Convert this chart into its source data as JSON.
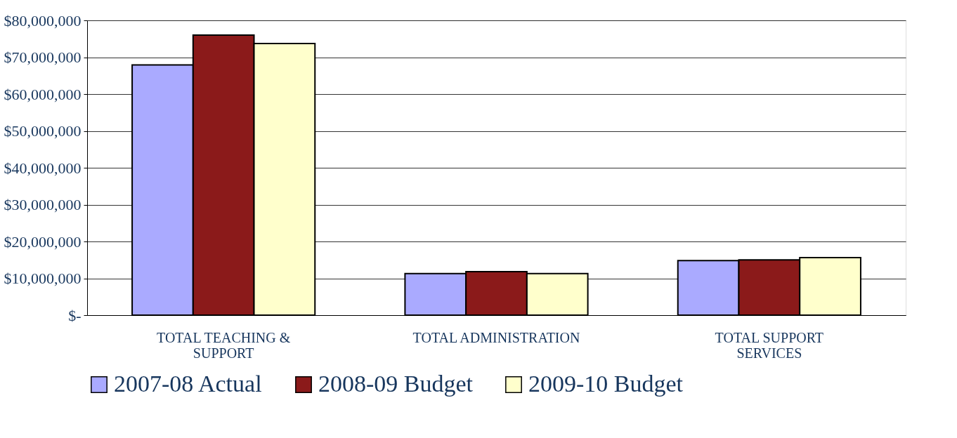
{
  "chart_data": {
    "type": "bar",
    "categories": [
      "TOTAL TEACHING & SUPPORT",
      "TOTAL ADMINISTRATION",
      "TOTAL SUPPORT SERVICES"
    ],
    "series": [
      {
        "name": "2007-08 Actual",
        "color": "#aaaaff",
        "values": [
          67900000,
          11300000,
          14800000
        ]
      },
      {
        "name": "2008-09 Budget",
        "color": "#8b1a1a",
        "values": [
          76000000,
          11800000,
          15000000
        ]
      },
      {
        "name": "2009-10 Budget",
        "color": "#ffffcc",
        "values": [
          73700000,
          11300000,
          15600000
        ]
      }
    ],
    "ylim": [
      0,
      80000000
    ],
    "yticks": [
      {
        "value": 0,
        "label": "$-"
      },
      {
        "value": 10000000,
        "label": "$10,000,000"
      },
      {
        "value": 20000000,
        "label": "$20,000,000"
      },
      {
        "value": 30000000,
        "label": "$30,000,000"
      },
      {
        "value": 40000000,
        "label": "$40,000,000"
      },
      {
        "value": 50000000,
        "label": "$50,000,000"
      },
      {
        "value": 60000000,
        "label": "$60,000,000"
      },
      {
        "value": 70000000,
        "label": "$70,000,000"
      },
      {
        "value": 80000000,
        "label": "$80,000,000"
      }
    ],
    "grid": "y",
    "legend": "bottom"
  }
}
